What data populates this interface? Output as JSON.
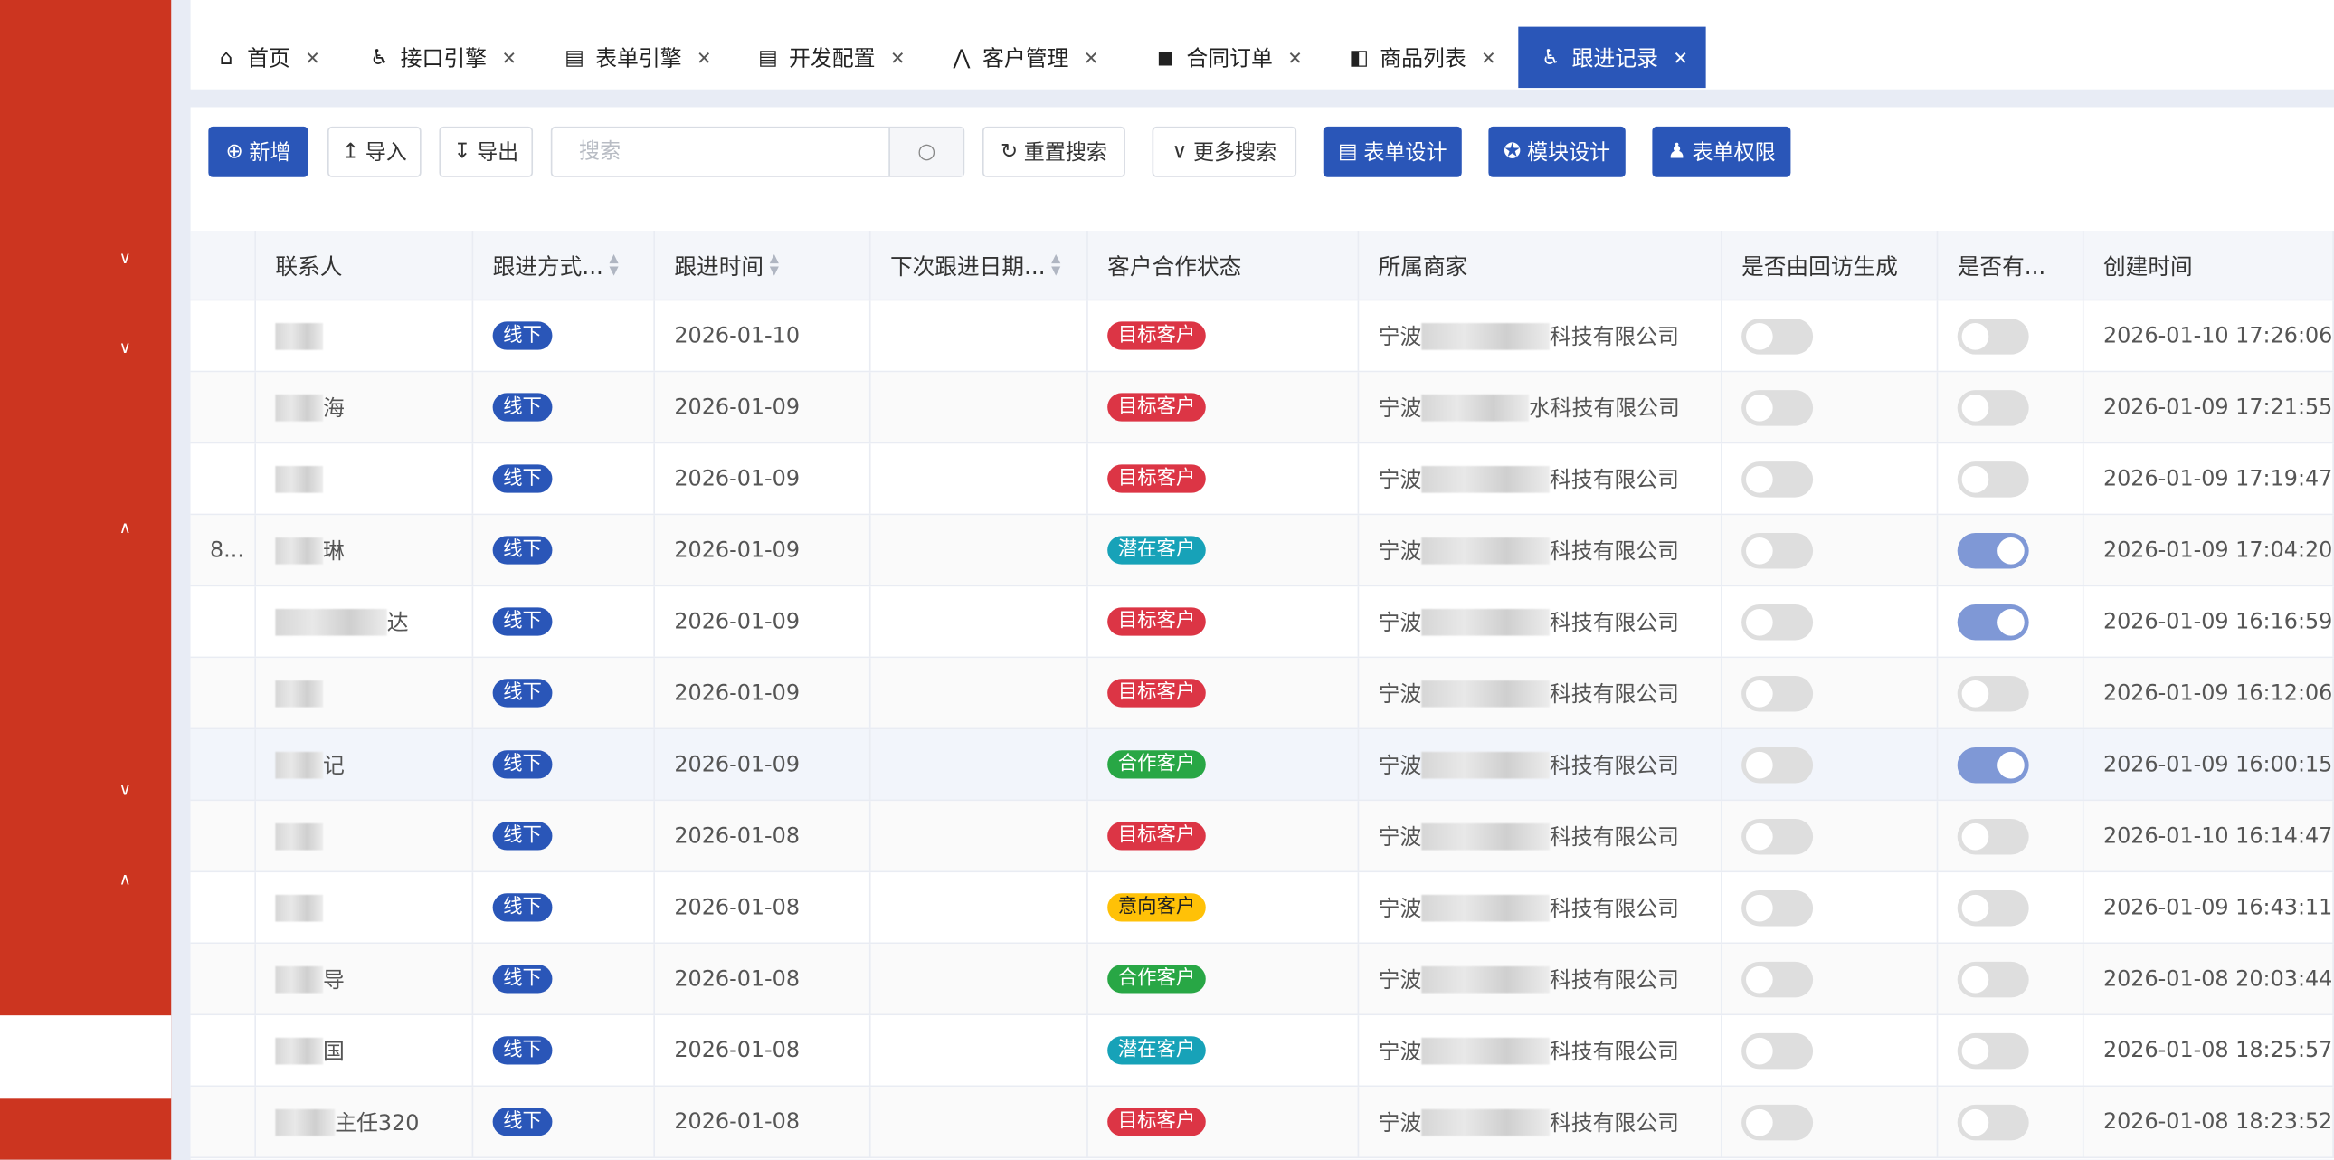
{
  "sidebar": {
    "chevrons": [
      "down",
      "down",
      "up",
      "down",
      "up"
    ]
  },
  "tabs": [
    {
      "label": "首页",
      "icon": "home-icon",
      "glyph": "⌂"
    },
    {
      "label": "接口引擎",
      "icon": "accessibility-icon",
      "glyph": "♿"
    },
    {
      "label": "表单引擎",
      "icon": "form-icon",
      "glyph": "▤"
    },
    {
      "label": "开发配置",
      "icon": "form-icon",
      "glyph": "▤"
    },
    {
      "label": "客户管理",
      "icon": "customer-icon",
      "glyph": "⋀"
    },
    {
      "label": "合同订单",
      "icon": "bag-icon",
      "glyph": "◼"
    },
    {
      "label": "商品列表",
      "icon": "shop-bag-icon",
      "glyph": "◧"
    },
    {
      "label": "跟进记录",
      "icon": "accessibility-icon",
      "glyph": "♿",
      "active": true
    }
  ],
  "toolbar": {
    "add": "新增",
    "import": "导入",
    "export": "导出",
    "search_placeholder": "搜索",
    "reset": "重置搜索",
    "more": "更多搜索",
    "form_design": "表单设计",
    "module_design": "模块设计",
    "form_perm": "表单权限"
  },
  "colors": {
    "primary": "#2a56b8",
    "目标客户": "#dc3545",
    "潜在客户": "#17a2b8",
    "合作客户": "#28a745",
    "意向客户": "#ffc107",
    "toggle_on": "#7f98d6"
  },
  "columns": [
    "",
    "联系人",
    "跟进方式...",
    "跟进时间",
    "下次跟进日期...",
    "客户合作状态",
    "所属商家",
    "是否由回访生成",
    "是否有...",
    "创建时间"
  ],
  "rows": [
    {
      "c0": "",
      "name": "",
      "method": "线下",
      "date": "2026-01-10",
      "next": "",
      "status": "目标客户",
      "shop_pre": "宁波",
      "shop_suf": "科技有限公司",
      "revisit": false,
      "has": false,
      "created": "2026-01-10 17:26:06"
    },
    {
      "c0": "",
      "name": "海",
      "method": "线下",
      "date": "2026-01-09",
      "next": "",
      "status": "目标客户",
      "shop_pre": "宁波",
      "shop_suf": "水科技有限公司",
      "revisit": false,
      "has": false,
      "created": "2026-01-09 17:21:55"
    },
    {
      "c0": "",
      "name": "",
      "method": "线下",
      "date": "2026-01-09",
      "next": "",
      "status": "目标客户",
      "shop_pre": "宁波",
      "shop_suf": "科技有限公司",
      "revisit": false,
      "has": false,
      "created": "2026-01-09 17:19:47"
    },
    {
      "c0": "8...",
      "name": "琳",
      "method": "线下",
      "date": "2026-01-09",
      "next": "",
      "status": "潜在客户",
      "shop_pre": "宁波",
      "shop_suf": "科技有限公司",
      "revisit": false,
      "has": true,
      "created": "2026-01-09 17:04:20"
    },
    {
      "c0": "",
      "name": "达",
      "method": "线下",
      "date": "2026-01-09",
      "next": "",
      "status": "目标客户",
      "shop_pre": "宁波",
      "shop_suf": "科技有限公司",
      "revisit": false,
      "has": true,
      "created": "2026-01-09 16:16:59"
    },
    {
      "c0": "",
      "name": "",
      "method": "线下",
      "date": "2026-01-09",
      "next": "",
      "status": "目标客户",
      "shop_pre": "宁波",
      "shop_suf": "科技有限公司",
      "revisit": false,
      "has": false,
      "created": "2026-01-09 16:12:06"
    },
    {
      "c0": "",
      "name": "记",
      "method": "线下",
      "date": "2026-01-09",
      "next": "",
      "status": "合作客户",
      "shop_pre": "宁波",
      "shop_suf": "科技有限公司",
      "revisit": false,
      "has": true,
      "created": "2026-01-09 16:00:15"
    },
    {
      "c0": "",
      "name": "",
      "method": "线下",
      "date": "2026-01-08",
      "next": "",
      "status": "目标客户",
      "shop_pre": "宁波",
      "shop_suf": "科技有限公司",
      "revisit": false,
      "has": false,
      "created": "2026-01-10 16:14:47"
    },
    {
      "c0": "",
      "name": "",
      "method": "线下",
      "date": "2026-01-08",
      "next": "",
      "status": "意向客户",
      "shop_pre": "宁波",
      "shop_suf": "科技有限公司",
      "revisit": false,
      "has": false,
      "created": "2026-01-09 16:43:11"
    },
    {
      "c0": "",
      "name": "导",
      "method": "线下",
      "date": "2026-01-08",
      "next": "",
      "status": "合作客户",
      "shop_pre": "宁波",
      "shop_suf": "科技有限公司",
      "revisit": false,
      "has": false,
      "created": "2026-01-08 20:03:44"
    },
    {
      "c0": "",
      "name": "国",
      "method": "线下",
      "date": "2026-01-08",
      "next": "",
      "status": "潜在客户",
      "shop_pre": "宁波",
      "shop_suf": "科技有限公司",
      "revisit": false,
      "has": false,
      "created": "2026-01-08 18:25:57"
    },
    {
      "c0": "",
      "name": "主任320",
      "method": "线下",
      "date": "2026-01-08",
      "next": "",
      "status": "目标客户",
      "shop_pre": "宁波",
      "shop_suf": "科技有限公司",
      "revisit": false,
      "has": false,
      "created": "2026-01-08 18:23:52"
    }
  ]
}
